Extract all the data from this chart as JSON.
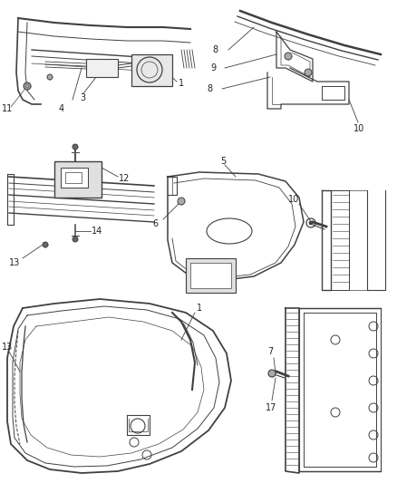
{
  "background_color": "#ffffff",
  "line_color": "#404040",
  "text_color": "#222222",
  "fig_width": 4.38,
  "fig_height": 5.33,
  "dpi": 100
}
